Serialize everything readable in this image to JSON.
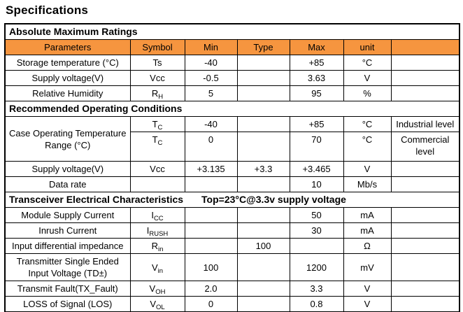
{
  "page": {
    "title": "Specifications"
  },
  "colors": {
    "header_fill": "#F6953F",
    "border": "#000000",
    "text": "#000000"
  },
  "table": {
    "rows": [
      {
        "type": "section",
        "cells": [
          {
            "t": "Absolute Maximum Ratings"
          }
        ]
      },
      {
        "type": "header",
        "cells": [
          {
            "t": "Parameters"
          },
          {
            "t": "Symbol"
          },
          {
            "t": "Min"
          },
          {
            "t": "Type"
          },
          {
            "t": "Max"
          },
          {
            "t": "unit"
          },
          {
            "t": ""
          }
        ]
      },
      {
        "type": "data",
        "cells": [
          {
            "t": "Storage temperature (°C)",
            "align": "l"
          },
          {
            "t": "Ts"
          },
          {
            "t": "-40"
          },
          {
            "t": ""
          },
          {
            "t": "+85"
          },
          {
            "t": "°C"
          },
          {
            "t": ""
          }
        ]
      },
      {
        "type": "data",
        "cells": [
          {
            "t": "Supply voltage(V)",
            "align": "l"
          },
          {
            "t": "Vcc"
          },
          {
            "t": "-0.5"
          },
          {
            "t": ""
          },
          {
            "t": "3.63"
          },
          {
            "t": "V"
          },
          {
            "t": ""
          }
        ]
      },
      {
        "type": "data",
        "cells": [
          {
            "t": "Relative Humidity",
            "align": "l"
          },
          {
            "t": "R_{H}"
          },
          {
            "t": "5"
          },
          {
            "t": ""
          },
          {
            "t": "95"
          },
          {
            "t": "%"
          },
          {
            "t": ""
          }
        ]
      },
      {
        "type": "section",
        "cells": [
          {
            "t": "Recommended Operating Conditions"
          }
        ]
      },
      {
        "type": "data",
        "cells": [
          {
            "t": "Case Operating Temperature Range (°C)",
            "align": "j",
            "rowspan": 2,
            "valign": "top"
          },
          {
            "t": "T_{C}"
          },
          {
            "t": "-40"
          },
          {
            "t": ""
          },
          {
            "t": "+85"
          },
          {
            "t": "°C"
          },
          {
            "t": "Industrial level",
            "align": "l"
          }
        ]
      },
      {
        "type": "data",
        "size": "tall",
        "cells": [
          {
            "t": "T_{C}"
          },
          {
            "t": "0"
          },
          {
            "t": ""
          },
          {
            "t": "70"
          },
          {
            "t": "°C"
          },
          {
            "t": "Commercial level",
            "align": "l"
          }
        ]
      },
      {
        "type": "data",
        "cells": [
          {
            "t": "Supply voltage(V)",
            "align": "l"
          },
          {
            "t": "Vcc"
          },
          {
            "t": "+3.135"
          },
          {
            "t": "+3.3"
          },
          {
            "t": "+3.465"
          },
          {
            "t": "V"
          },
          {
            "t": ""
          }
        ]
      },
      {
        "type": "data",
        "cells": [
          {
            "t": "Data rate",
            "align": "l"
          },
          {
            "t": ""
          },
          {
            "t": ""
          },
          {
            "t": ""
          },
          {
            "t": "10"
          },
          {
            "t": "Mb/s"
          },
          {
            "t": ""
          }
        ]
      },
      {
        "type": "section",
        "cells": [
          {
            "t": "Transceiver Electrical Characteristics"
          },
          {
            "t": "Top=23°C@3.3v supply voltage"
          }
        ]
      },
      {
        "type": "data",
        "cells": [
          {
            "t": "Module Supply Current",
            "align": "l"
          },
          {
            "t": "I_{CC}"
          },
          {
            "t": ""
          },
          {
            "t": ""
          },
          {
            "t": "50"
          },
          {
            "t": "mA"
          },
          {
            "t": ""
          }
        ]
      },
      {
        "type": "data",
        "cells": [
          {
            "t": "Inrush Current",
            "align": "l"
          },
          {
            "t": "I_{RUSH}"
          },
          {
            "t": ""
          },
          {
            "t": ""
          },
          {
            "t": "30"
          },
          {
            "t": "mA"
          },
          {
            "t": ""
          }
        ]
      },
      {
        "type": "data",
        "cells": [
          {
            "t": "Input differential impedance",
            "align": "l"
          },
          {
            "t": "R_{in}"
          },
          {
            "t": ""
          },
          {
            "t": "100"
          },
          {
            "t": ""
          },
          {
            "t": "Ω"
          },
          {
            "t": ""
          }
        ]
      },
      {
        "type": "data",
        "size": "tall2",
        "cells": [
          {
            "t": "Transmitter Single Ended Input Voltage (TD±)",
            "align": "j"
          },
          {
            "t": "V_{in}"
          },
          {
            "t": "100"
          },
          {
            "t": ""
          },
          {
            "t": "1200"
          },
          {
            "t": "mV"
          },
          {
            "t": ""
          }
        ]
      },
      {
        "type": "data",
        "cells": [
          {
            "t": "Transmit Fault(TX_Fault)",
            "align": "l"
          },
          {
            "t": "V_{OH}"
          },
          {
            "t": "2.0"
          },
          {
            "t": ""
          },
          {
            "t": "3.3"
          },
          {
            "t": "V"
          },
          {
            "t": ""
          }
        ]
      },
      {
        "type": "data",
        "cells": [
          {
            "t": "LOSS of Signal (LOS)",
            "align": "l"
          },
          {
            "t": "V_{OL}"
          },
          {
            "t": "0"
          },
          {
            "t": ""
          },
          {
            "t": "0.8"
          },
          {
            "t": "V"
          },
          {
            "t": ""
          }
        ]
      }
    ]
  }
}
